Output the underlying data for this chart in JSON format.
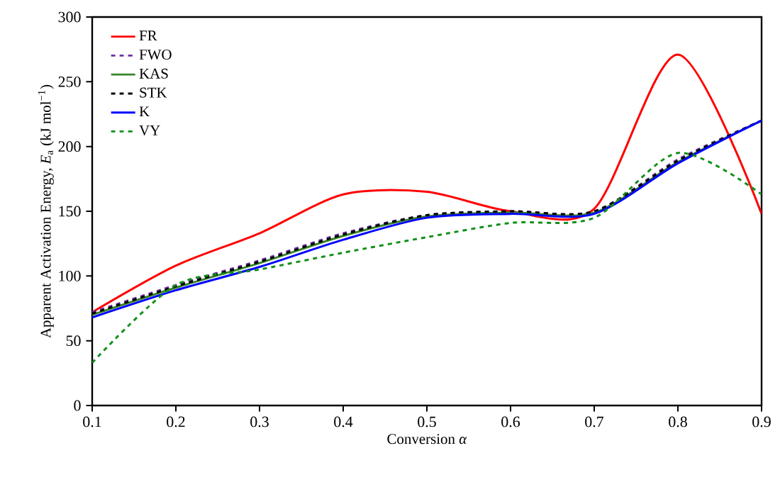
{
  "chart_data": {
    "type": "line",
    "xlabel": "Conversion *α*",
    "ylabel": "Apparent Activation Energy, *E*$_{a}$ (kJ mol$^{−1}$)",
    "x": [
      0.1,
      0.2,
      0.3,
      0.4,
      0.5,
      0.6,
      0.7,
      0.8,
      0.9
    ],
    "series": [
      {
        "name": "FR",
        "color": "#ff0000",
        "line_style": "solid",
        "values": [
          72,
          108,
          133,
          163,
          165,
          150,
          152,
          271,
          148
        ]
      },
      {
        "name": "FWO",
        "color": "#7030a0",
        "line_style": "dashed",
        "values": [
          72,
          93,
          112,
          133,
          147,
          150,
          150,
          190,
          220
        ]
      },
      {
        "name": "KAS",
        "color": "#38862a",
        "line_style": "solid",
        "values": [
          70,
          91,
          110,
          131,
          146,
          149,
          149,
          188,
          220
        ]
      },
      {
        "name": "STK",
        "color": "#000000",
        "line_style": "dashed",
        "values": [
          71,
          92,
          111,
          132,
          147,
          150,
          150,
          189,
          220
        ]
      },
      {
        "name": "K",
        "color": "#0000ff",
        "line_style": "solid",
        "values": [
          68,
          89,
          107,
          128,
          145,
          148,
          148,
          187,
          220
        ]
      },
      {
        "name": "VY",
        "color": "#12901a",
        "line_style": "dashed",
        "values": [
          33,
          93,
          105,
          118,
          130,
          141,
          145,
          195,
          163
        ]
      }
    ],
    "xlim": [
      0.1,
      0.9
    ],
    "ylim": [
      0,
      300
    ],
    "xticks": [
      0.1,
      0.2,
      0.3,
      0.4,
      0.5,
      0.6,
      0.7,
      0.8,
      0.9
    ],
    "yticks": [
      0,
      50,
      100,
      150,
      200,
      250,
      300
    ],
    "legend": "top left",
    "grid": false,
    "marker": "none"
  }
}
